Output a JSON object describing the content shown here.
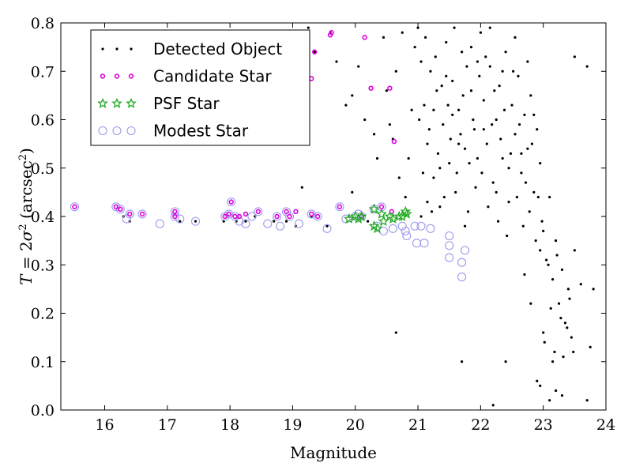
{
  "chart_data": {
    "type": "scatter",
    "xlabel": "Magnitude",
    "ylabel_parts": [
      "T",
      " = 2",
      "σ",
      "2",
      " (arcsec",
      "2",
      ")"
    ],
    "xlim": [
      15.3,
      24.0
    ],
    "ylim": [
      0.0,
      0.8
    ],
    "xticks": [
      16,
      17,
      18,
      19,
      20,
      21,
      22,
      23,
      24
    ],
    "yticks": [
      0.0,
      0.1,
      0.2,
      0.3,
      0.4,
      0.5,
      0.6,
      0.7,
      0.8
    ],
    "legend_position": "top-left",
    "grid": false,
    "series": [
      {
        "name": "Detected Object",
        "marker": "dot",
        "color": "#000000",
        "points": [
          [
            16.3,
            0.4
          ],
          [
            16.4,
            0.39
          ],
          [
            17.2,
            0.39
          ],
          [
            17.45,
            0.39
          ],
          [
            17.9,
            0.39
          ],
          [
            18.1,
            0.39
          ],
          [
            18.25,
            0.39
          ],
          [
            18.4,
            0.4
          ],
          [
            18.7,
            0.39
          ],
          [
            18.9,
            0.39
          ],
          [
            19.05,
            0.38
          ],
          [
            19.3,
            0.4
          ],
          [
            19.55,
            0.38
          ],
          [
            19.9,
            0.4
          ],
          [
            20.2,
            0.39
          ],
          [
            19.25,
            0.79
          ],
          [
            19.35,
            0.74
          ],
          [
            19.6,
            0.78
          ],
          [
            19.7,
            0.72
          ],
          [
            19.85,
            0.63
          ],
          [
            19.95,
            0.65
          ],
          [
            20.05,
            0.71
          ],
          [
            20.15,
            0.6
          ],
          [
            20.3,
            0.57
          ],
          [
            20.35,
            0.52
          ],
          [
            20.45,
            0.77
          ],
          [
            20.5,
            0.66
          ],
          [
            20.55,
            0.59
          ],
          [
            20.6,
            0.56
          ],
          [
            20.65,
            0.7
          ],
          [
            20.7,
            0.48
          ],
          [
            20.75,
            0.78
          ],
          [
            20.8,
            0.44
          ],
          [
            20.85,
            0.52
          ],
          [
            20.9,
            0.62
          ],
          [
            20.95,
            0.75
          ],
          [
            19.15,
            0.46
          ],
          [
            19.95,
            0.45
          ],
          [
            20.65,
            0.16
          ],
          [
            21.0,
            0.79
          ],
          [
            21.05,
            0.72
          ],
          [
            21.1,
            0.63
          ],
          [
            21.15,
            0.55
          ],
          [
            21.2,
            0.7
          ],
          [
            21.25,
            0.48
          ],
          [
            21.3,
            0.66
          ],
          [
            21.35,
            0.42
          ],
          [
            21.4,
            0.59
          ],
          [
            21.45,
            0.76
          ],
          [
            21.5,
            0.51
          ],
          [
            21.55,
            0.68
          ],
          [
            21.6,
            0.45
          ],
          [
            21.65,
            0.62
          ],
          [
            21.7,
            0.74
          ],
          [
            21.75,
            0.54
          ],
          [
            21.8,
            0.41
          ],
          [
            21.85,
            0.66
          ],
          [
            21.9,
            0.58
          ],
          [
            21.95,
            0.72
          ],
          [
            21.02,
            0.6
          ],
          [
            21.08,
            0.49
          ],
          [
            21.12,
            0.77
          ],
          [
            21.18,
            0.58
          ],
          [
            21.22,
            0.41
          ],
          [
            21.28,
            0.73
          ],
          [
            21.32,
            0.53
          ],
          [
            21.38,
            0.67
          ],
          [
            21.42,
            0.44
          ],
          [
            21.48,
            0.63
          ],
          [
            21.52,
            0.56
          ],
          [
            21.58,
            0.79
          ],
          [
            21.62,
            0.49
          ],
          [
            21.68,
            0.57
          ],
          [
            21.72,
            0.65
          ],
          [
            21.78,
            0.71
          ],
          [
            21.82,
            0.51
          ],
          [
            21.88,
            0.6
          ],
          [
            21.92,
            0.46
          ],
          [
            21.98,
            0.69
          ],
          [
            21.15,
            0.43
          ],
          [
            21.35,
            0.5
          ],
          [
            21.55,
            0.61
          ],
          [
            21.75,
            0.38
          ],
          [
            21.95,
            0.52
          ],
          [
            21.45,
            0.69
          ],
          [
            21.65,
            0.55
          ],
          [
            21.85,
            0.75
          ],
          [
            21.25,
            0.62
          ],
          [
            21.05,
            0.4
          ],
          [
            22.0,
            0.78
          ],
          [
            22.05,
            0.64
          ],
          [
            22.1,
            0.55
          ],
          [
            22.15,
            0.71
          ],
          [
            22.2,
            0.47
          ],
          [
            22.25,
            0.6
          ],
          [
            22.3,
            0.67
          ],
          [
            22.35,
            0.52
          ],
          [
            22.4,
            0.74
          ],
          [
            22.45,
            0.43
          ],
          [
            22.5,
            0.63
          ],
          [
            22.55,
            0.57
          ],
          [
            22.6,
            0.69
          ],
          [
            22.65,
            0.49
          ],
          [
            22.7,
            0.61
          ],
          [
            22.75,
            0.54
          ],
          [
            22.8,
            0.65
          ],
          [
            22.85,
            0.45
          ],
          [
            22.9,
            0.58
          ],
          [
            22.95,
            0.51
          ],
          [
            22.02,
            0.49
          ],
          [
            22.08,
            0.73
          ],
          [
            22.12,
            0.42
          ],
          [
            22.18,
            0.59
          ],
          [
            22.22,
            0.66
          ],
          [
            22.28,
            0.39
          ],
          [
            22.32,
            0.56
          ],
          [
            22.38,
            0.62
          ],
          [
            22.42,
            0.36
          ],
          [
            22.48,
            0.53
          ],
          [
            22.52,
            0.7
          ],
          [
            22.58,
            0.44
          ],
          [
            22.62,
            0.59
          ],
          [
            22.68,
            0.38
          ],
          [
            22.72,
            0.47
          ],
          [
            22.78,
            0.41
          ],
          [
            22.82,
            0.55
          ],
          [
            22.88,
            0.35
          ],
          [
            22.92,
            0.44
          ],
          [
            22.98,
            0.39
          ],
          [
            22.15,
            0.79
          ],
          [
            22.35,
            0.7
          ],
          [
            22.55,
            0.77
          ],
          [
            22.75,
            0.72
          ],
          [
            22.25,
            0.45
          ],
          [
            22.45,
            0.5
          ],
          [
            22.65,
            0.53
          ],
          [
            22.85,
            0.61
          ],
          [
            22.05,
            0.58
          ],
          [
            22.95,
            0.33
          ],
          [
            22.4,
            0.1
          ],
          [
            22.2,
            0.01
          ],
          [
            21.7,
            0.1
          ],
          [
            23.0,
            0.37
          ],
          [
            23.05,
            0.31
          ],
          [
            23.1,
            0.44
          ],
          [
            23.15,
            0.27
          ],
          [
            23.2,
            0.35
          ],
          [
            23.25,
            0.22
          ],
          [
            23.3,
            0.29
          ],
          [
            23.35,
            0.18
          ],
          [
            23.4,
            0.25
          ],
          [
            23.45,
            0.15
          ],
          [
            23.5,
            0.33
          ],
          [
            23.02,
            0.14
          ],
          [
            23.08,
            0.3
          ],
          [
            23.12,
            0.21
          ],
          [
            23.18,
            0.12
          ],
          [
            23.22,
            0.32
          ],
          [
            23.28,
            0.19
          ],
          [
            23.32,
            0.11
          ],
          [
            23.38,
            0.17
          ],
          [
            23.42,
            0.23
          ],
          [
            23.48,
            0.12
          ],
          [
            23.5,
            0.73
          ],
          [
            23.7,
            0.71
          ],
          [
            23.6,
            0.26
          ],
          [
            23.75,
            0.13
          ],
          [
            23.8,
            0.25
          ],
          [
            22.9,
            0.06
          ],
          [
            22.95,
            0.05
          ],
          [
            23.2,
            0.04
          ],
          [
            23.1,
            0.02
          ],
          [
            23.3,
            0.03
          ],
          [
            23.7,
            0.02
          ],
          [
            23.15,
            0.1
          ],
          [
            23.0,
            0.16
          ],
          [
            22.8,
            0.22
          ],
          [
            22.7,
            0.28
          ]
        ]
      },
      {
        "name": "Candidate Star",
        "marker": "ring",
        "color": "#dd00dd",
        "points": [
          [
            15.52,
            0.42
          ],
          [
            16.18,
            0.42
          ],
          [
            16.25,
            0.415
          ],
          [
            16.4,
            0.405
          ],
          [
            16.6,
            0.405
          ],
          [
            17.12,
            0.41
          ],
          [
            17.12,
            0.4
          ],
          [
            17.92,
            0.4
          ],
          [
            17.98,
            0.405
          ],
          [
            18.02,
            0.43
          ],
          [
            18.08,
            0.4
          ],
          [
            18.15,
            0.4
          ],
          [
            18.25,
            0.405
          ],
          [
            18.45,
            0.41
          ],
          [
            18.75,
            0.4
          ],
          [
            18.9,
            0.41
          ],
          [
            18.95,
            0.4
          ],
          [
            19.05,
            0.41
          ],
          [
            19.3,
            0.405
          ],
          [
            19.4,
            0.4
          ],
          [
            19.75,
            0.42
          ],
          [
            20.1,
            0.4
          ],
          [
            20.42,
            0.42
          ],
          [
            20.58,
            0.41
          ],
          [
            20.62,
            0.555
          ],
          [
            19.35,
            0.74
          ],
          [
            19.62,
            0.78
          ],
          [
            19.6,
            0.775
          ],
          [
            19.3,
            0.685
          ],
          [
            20.15,
            0.77
          ],
          [
            20.25,
            0.665
          ],
          [
            20.55,
            0.665
          ]
        ]
      },
      {
        "name": "PSF Star",
        "marker": "star",
        "color": "#22aa22",
        "points": [
          [
            19.9,
            0.395
          ],
          [
            20.0,
            0.4
          ],
          [
            20.05,
            0.395
          ],
          [
            20.1,
            0.4
          ],
          [
            20.3,
            0.415
          ],
          [
            20.3,
            0.38
          ],
          [
            20.35,
            0.375
          ],
          [
            20.42,
            0.405
          ],
          [
            20.45,
            0.39
          ],
          [
            20.55,
            0.4
          ],
          [
            20.6,
            0.395
          ],
          [
            20.7,
            0.4
          ],
          [
            20.8,
            0.41
          ],
          [
            20.82,
            0.405
          ],
          [
            20.75,
            0.4
          ]
        ]
      },
      {
        "name": "Modest Star",
        "marker": "circle",
        "color": "#9999ee",
        "points": [
          [
            15.52,
            0.42
          ],
          [
            16.18,
            0.42
          ],
          [
            16.25,
            0.415
          ],
          [
            16.35,
            0.395
          ],
          [
            16.4,
            0.405
          ],
          [
            16.6,
            0.405
          ],
          [
            16.88,
            0.385
          ],
          [
            17.12,
            0.41
          ],
          [
            17.12,
            0.4
          ],
          [
            17.2,
            0.395
          ],
          [
            17.45,
            0.39
          ],
          [
            17.92,
            0.4
          ],
          [
            17.98,
            0.405
          ],
          [
            18.02,
            0.43
          ],
          [
            18.08,
            0.4
          ],
          [
            18.15,
            0.39
          ],
          [
            18.25,
            0.385
          ],
          [
            18.35,
            0.4
          ],
          [
            18.45,
            0.41
          ],
          [
            18.6,
            0.385
          ],
          [
            18.75,
            0.4
          ],
          [
            18.8,
            0.38
          ],
          [
            18.9,
            0.41
          ],
          [
            18.95,
            0.4
          ],
          [
            19.1,
            0.385
          ],
          [
            19.3,
            0.405
          ],
          [
            19.4,
            0.4
          ],
          [
            19.55,
            0.375
          ],
          [
            19.75,
            0.42
          ],
          [
            19.85,
            0.395
          ],
          [
            20.0,
            0.4
          ],
          [
            20.05,
            0.405
          ],
          [
            20.1,
            0.4
          ],
          [
            20.3,
            0.415
          ],
          [
            20.35,
            0.38
          ],
          [
            20.42,
            0.42
          ],
          [
            20.45,
            0.37
          ],
          [
            20.6,
            0.375
          ],
          [
            20.75,
            0.38
          ],
          [
            20.8,
            0.37
          ],
          [
            20.82,
            0.36
          ],
          [
            20.95,
            0.38
          ],
          [
            20.98,
            0.345
          ],
          [
            21.05,
            0.38
          ],
          [
            21.1,
            0.345
          ],
          [
            21.2,
            0.375
          ],
          [
            21.5,
            0.36
          ],
          [
            21.5,
            0.34
          ],
          [
            21.5,
            0.315
          ],
          [
            21.7,
            0.305
          ],
          [
            21.75,
            0.33
          ],
          [
            21.7,
            0.275
          ]
        ]
      }
    ]
  }
}
